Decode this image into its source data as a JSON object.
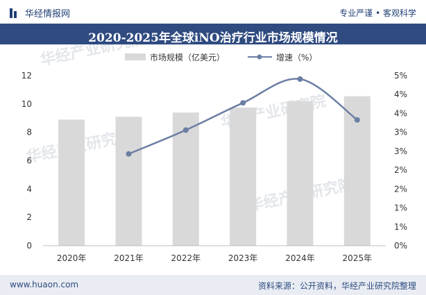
{
  "header": {
    "brand": "华经情报网",
    "tagline": "专业严谨 • 客观科学"
  },
  "chart_data": {
    "type": "bar",
    "title": "2020-2025年全球iNO治疗行业市场规模情况",
    "categories": [
      "2020年",
      "2021年",
      "2022年",
      "2023年",
      "2024年",
      "2025年"
    ],
    "series": [
      {
        "name": "市场规模（亿美元）",
        "type": "bar",
        "axis": "left",
        "values": [
          8.9,
          9.1,
          9.4,
          9.75,
          10.2,
          10.55
        ],
        "color": "#d9d9d9"
      },
      {
        "name": "增速（%）",
        "type": "line",
        "axis": "right",
        "values": [
          null,
          2.7,
          3.4,
          4.2,
          4.9,
          3.7
        ],
        "color": "#6b7fa3"
      }
    ],
    "left_axis": {
      "ylim": [
        0,
        12
      ],
      "ticks": [
        "0",
        "2",
        "4",
        "6",
        "8",
        "10",
        "12"
      ]
    },
    "right_axis": {
      "ylim": [
        0,
        5
      ],
      "ticks": [
        "0%",
        "1%",
        "1%",
        "2%",
        "2%",
        "3%",
        "3%",
        "4%",
        "4%",
        "5%"
      ]
    },
    "legend_position": "top",
    "grid": false
  },
  "watermarks": [
    "华经产业研究院",
    "华经产业研究院",
    "华经产业研究院",
    "华经产业研究院"
  ],
  "footer": {
    "site": "www.huaon.com",
    "source": "资料来源：公开资料，华经产业研究院整理"
  }
}
